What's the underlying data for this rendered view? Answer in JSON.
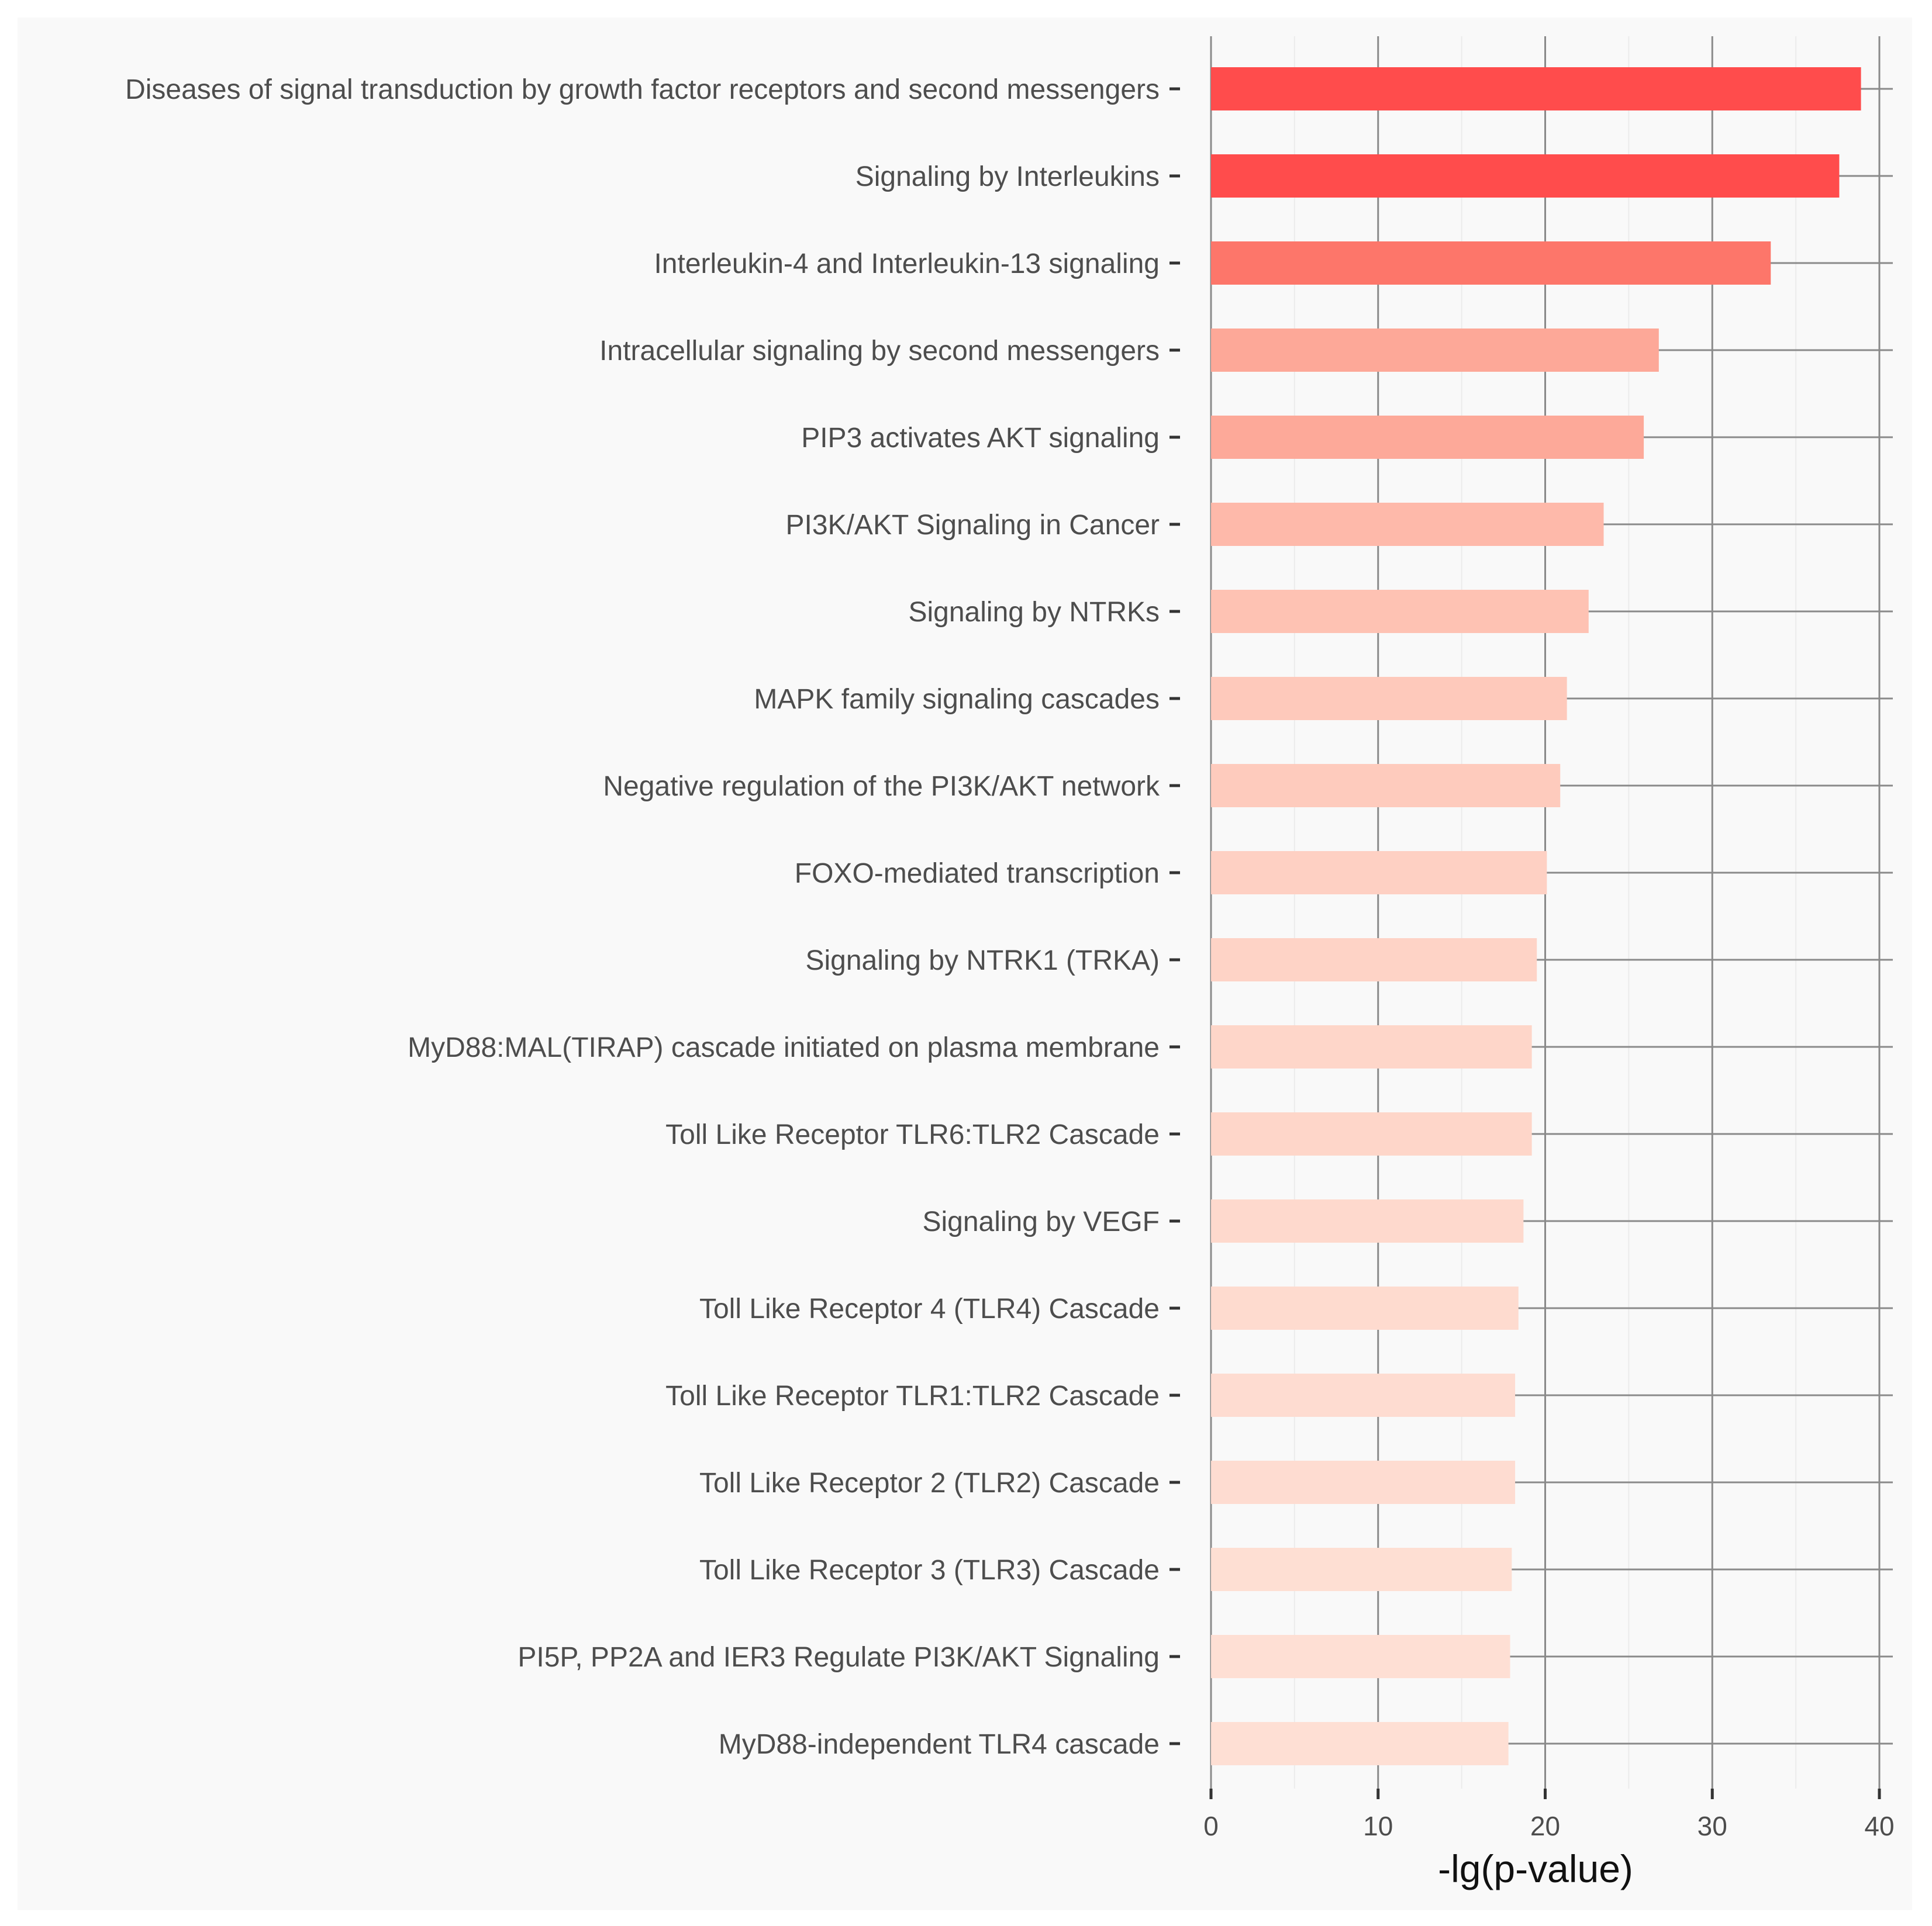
{
  "chart_data": {
    "type": "bar",
    "orientation": "horizontal",
    "title": "",
    "xlabel": "-lg(p-value)",
    "ylabel": "",
    "xlim": [
      0,
      41
    ],
    "xticks": [
      0,
      10,
      20,
      30,
      40
    ],
    "grid": true,
    "legend": "none",
    "categories": [
      "Diseases of signal transduction by growth factor receptors and second messengers",
      "Signaling by Interleukins",
      "Interleukin-4 and Interleukin-13 signaling",
      "Intracellular signaling by second messengers",
      "PIP3 activates AKT signaling",
      "PI3K/AKT Signaling in Cancer",
      "Signaling by NTRKs",
      "MAPK family signaling cascades",
      "Negative regulation of the PI3K/AKT network",
      "FOXO-mediated transcription",
      "Signaling by NTRK1 (TRKA)",
      "MyD88:MAL(TIRAP) cascade initiated on plasma membrane",
      "Toll Like Receptor TLR6:TLR2 Cascade",
      "Signaling by VEGF",
      "Toll Like Receptor 4 (TLR4) Cascade",
      "Toll Like Receptor TLR1:TLR2 Cascade",
      "Toll Like Receptor 2 (TLR2) Cascade",
      "Toll Like Receptor 3 (TLR3) Cascade",
      "PI5P, PP2A and IER3 Regulate PI3K/AKT Signaling",
      "MyD88-independent TLR4 cascade"
    ],
    "values": [
      38.9,
      37.6,
      33.5,
      26.8,
      25.9,
      23.5,
      22.6,
      21.3,
      20.9,
      20.1,
      19.5,
      19.2,
      19.2,
      18.7,
      18.4,
      18.2,
      18.2,
      18.0,
      17.9,
      17.8
    ],
    "colors": [
      "#ff4c4c",
      "#ff4c4c",
      "#fd766a",
      "#fda898",
      "#fda999",
      "#feb9aa",
      "#fec2b3",
      "#fec9bb",
      "#fecbbd",
      "#fed0c3",
      "#fed3c6",
      "#fed6c9",
      "#fed6c9",
      "#fed9cd",
      "#fedbcf",
      "#fedcd1",
      "#fedcd1",
      "#fedfd3",
      "#fedfd4",
      "#fedfd4"
    ]
  }
}
